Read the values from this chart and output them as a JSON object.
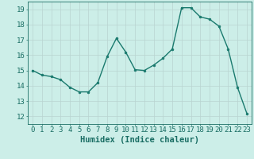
{
  "x": [
    0,
    1,
    2,
    3,
    4,
    5,
    6,
    7,
    8,
    9,
    10,
    11,
    12,
    13,
    14,
    15,
    16,
    17,
    18,
    19,
    20,
    21,
    22,
    23
  ],
  "y": [
    15.0,
    14.7,
    14.6,
    14.4,
    13.9,
    13.6,
    13.6,
    14.2,
    15.9,
    17.1,
    16.2,
    15.05,
    15.0,
    15.35,
    15.8,
    16.4,
    19.1,
    19.1,
    18.5,
    18.35,
    17.9,
    16.4,
    13.9,
    12.2
  ],
  "line_color": "#1a7a6e",
  "marker_color": "#1a7a6e",
  "bg_color": "#cceee8",
  "grid_color": "#b8d4d0",
  "xlabel": "Humidex (Indice chaleur)",
  "xlim": [
    -0.5,
    23.5
  ],
  "ylim": [
    11.5,
    19.5
  ],
  "yticks": [
    12,
    13,
    14,
    15,
    16,
    17,
    18,
    19
  ],
  "xticks": [
    0,
    1,
    2,
    3,
    4,
    5,
    6,
    7,
    8,
    9,
    10,
    11,
    12,
    13,
    14,
    15,
    16,
    17,
    18,
    19,
    20,
    21,
    22,
    23
  ],
  "font_color": "#1a6e64",
  "tick_fontsize": 6.5,
  "label_fontsize": 7.5
}
